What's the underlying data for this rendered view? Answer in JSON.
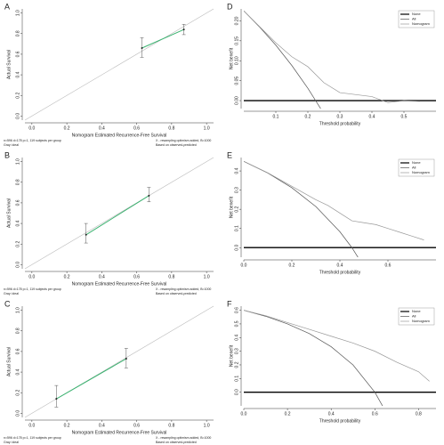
{
  "chart_data": [
    {
      "type": "calibration",
      "panel": "A",
      "xlabel": "Nomogram Estimated Recurrence-Free Survival",
      "ylabel": "Actual Survival",
      "xlim": [
        -0.04,
        1.04
      ],
      "ylim": [
        -0.04,
        1.04
      ],
      "xticks": [
        {
          "value": 0,
          "label": "0.0"
        },
        0.2,
        0.4,
        0.6,
        0.8,
        {
          "value": 1,
          "label": "1.0"
        }
      ],
      "yticks": [
        {
          "value": 0,
          "label": "0.0"
        },
        0.2,
        0.4,
        0.6,
        0.8,
        {
          "value": 1,
          "label": "1.0"
        }
      ],
      "x": [
        0.63,
        0.87
      ],
      "values": [
        0.66,
        0.84
      ],
      "lower": [
        0.57,
        0.79
      ],
      "upper": [
        0.76,
        0.89
      ],
      "color": "#3cb371",
      "notes_left": [
        "n=596 d=178 p=1, 119 subjects per group",
        "Gray: ideal"
      ],
      "notes_right": [
        "X - resampling optimism added, B=1000",
        "Based on observed-predicted"
      ]
    },
    {
      "type": "calibration",
      "panel": "B",
      "xlabel": "Nomogram Estimated Recurrence-Free Survival",
      "ylabel": "Actual Survival",
      "xlim": [
        -0.04,
        1.04
      ],
      "ylim": [
        -0.04,
        1.04
      ],
      "xticks": [
        {
          "value": 0,
          "label": "0.0"
        },
        0.2,
        0.4,
        0.6,
        0.8,
        {
          "value": 1,
          "label": "1.0"
        }
      ],
      "yticks": [
        {
          "value": 0,
          "label": "0.0"
        },
        0.2,
        0.4,
        0.6,
        0.8,
        {
          "value": 1,
          "label": "1.0"
        }
      ],
      "x": [
        0.31,
        0.67
      ],
      "values": [
        0.29,
        0.67
      ],
      "lower": [
        0.21,
        0.61
      ],
      "upper": [
        0.4,
        0.75
      ],
      "color": "#3cb371",
      "notes_left": [
        "n=596 d=178 p=1, 119 subjects per group",
        "Gray: ideal"
      ],
      "notes_right": [
        "X - resampling optimism added, B=1000",
        "Based on observed-predicted"
      ]
    },
    {
      "type": "calibration",
      "panel": "C",
      "xlabel": "Nomogram Estimated Recurrence-Free Survival",
      "ylabel": "Actual Survival",
      "xlim": [
        -0.04,
        1.04
      ],
      "ylim": [
        -0.04,
        1.04
      ],
      "xticks": [
        {
          "value": 0,
          "label": "0.0"
        },
        0.2,
        0.4,
        0.6,
        0.8,
        {
          "value": 1,
          "label": "1.0"
        }
      ],
      "yticks": [
        {
          "value": 0,
          "label": "0.0"
        },
        0.2,
        0.4,
        0.6,
        0.8,
        {
          "value": 1,
          "label": "1.0"
        }
      ],
      "x": [
        0.14,
        0.54
      ],
      "values": [
        0.14,
        0.53
      ],
      "lower": [
        0.06,
        0.44
      ],
      "upper": [
        0.27,
        0.63
      ],
      "color": "#3cb371",
      "notes_left": [
        "n=596 d=178 p=1, 119 subjects per group",
        "Gray: ideal"
      ],
      "notes_right": [
        "X - resampling optimism added, B=1000",
        "Based on observed-predicted"
      ]
    },
    {
      "type": "line",
      "panel": "D",
      "xlabel": "Threshold probability",
      "ylabel": "Net benefit",
      "xlim": [
        0,
        0.6
      ],
      "ylim": [
        -0.02,
        0.23
      ],
      "xticks": [
        0.1,
        0.2,
        0.3,
        0.4,
        0.5
      ],
      "yticks": [
        {
          "value": 0,
          "label": "0.00"
        },
        {
          "value": 0.05,
          "label": "0.05"
        },
        {
          "value": 0.1,
          "label": "0.10"
        },
        {
          "value": 0.15,
          "label": "0.15"
        },
        {
          "value": 0.2,
          "label": "0.20"
        }
      ],
      "series": [
        {
          "name": "None",
          "color": "#000000",
          "x": [
            0,
            0.6
          ],
          "values": [
            0,
            0
          ]
        },
        {
          "name": "All",
          "color": "#555555",
          "x": [
            0,
            0.05,
            0.1,
            0.15,
            0.2,
            0.25
          ],
          "values": [
            0.225,
            0.184,
            0.139,
            0.088,
            0.031,
            -0.033
          ]
        },
        {
          "name": "Nomogram",
          "color": "#999999",
          "x": [
            0,
            0.05,
            0.1,
            0.15,
            0.2,
            0.25,
            0.3,
            0.35,
            0.4,
            0.45,
            0.5,
            0.55
          ],
          "values": [
            0.225,
            0.185,
            0.145,
            0.11,
            0.085,
            0.045,
            0.02,
            0.015,
            0.01,
            -0.005,
            0,
            -0.002
          ]
        }
      ]
    },
    {
      "type": "line",
      "panel": "E",
      "xlabel": "Threshold probability",
      "ylabel": "Net benefit",
      "xlim": [
        0,
        0.8
      ],
      "ylim": [
        -0.05,
        0.47
      ],
      "xticks": [
        {
          "value": 0,
          "label": "0.0"
        },
        0.2,
        0.4,
        0.6
      ],
      "yticks": [
        {
          "value": 0,
          "label": "0.0"
        },
        0.1,
        0.2,
        0.3,
        0.4
      ],
      "series": [
        {
          "name": "None",
          "color": "#000000",
          "x": [
            0,
            0.8
          ],
          "values": [
            0,
            0
          ]
        },
        {
          "name": "All",
          "color": "#555555",
          "x": [
            0,
            0.1,
            0.2,
            0.3,
            0.4,
            0.45,
            0.5
          ],
          "values": [
            0.45,
            0.389,
            0.3125,
            0.214,
            0.083,
            0,
            -0.1
          ]
        },
        {
          "name": "Nomogram",
          "color": "#999999",
          "x": [
            0,
            0.1,
            0.2,
            0.3,
            0.35,
            0.4,
            0.45,
            0.5,
            0.55,
            0.6,
            0.65,
            0.7,
            0.75
          ],
          "values": [
            0.45,
            0.39,
            0.32,
            0.25,
            0.22,
            0.18,
            0.14,
            0.13,
            0.12,
            0.1,
            0.08,
            0.06,
            0.04
          ]
        }
      ]
    },
    {
      "type": "line",
      "panel": "F",
      "xlabel": "Threshold probability",
      "ylabel": "Net benefit",
      "xlim": [
        0,
        0.88
      ],
      "ylim": [
        -0.1,
        0.63
      ],
      "xticks": [
        {
          "value": 0,
          "label": "0.0"
        },
        0.2,
        0.4,
        0.6,
        0.8
      ],
      "yticks": [
        {
          "value": 0,
          "label": "0.0"
        },
        0.1,
        0.2,
        0.3,
        0.4,
        0.5,
        0.6
      ],
      "series": [
        {
          "name": "None",
          "color": "#000000",
          "x": [
            0,
            0.88
          ],
          "values": [
            0,
            0
          ]
        },
        {
          "name": "All",
          "color": "#555555",
          "x": [
            0,
            0.1,
            0.2,
            0.3,
            0.4,
            0.5,
            0.6,
            0.65
          ],
          "values": [
            0.6,
            0.556,
            0.5,
            0.429,
            0.333,
            0.2,
            0,
            -0.143
          ]
        },
        {
          "name": "Nomogram",
          "color": "#999999",
          "x": [
            0,
            0.1,
            0.2,
            0.3,
            0.4,
            0.5,
            0.6,
            0.7,
            0.8,
            0.85
          ],
          "values": [
            0.6,
            0.56,
            0.51,
            0.46,
            0.41,
            0.36,
            0.3,
            0.22,
            0.15,
            0.08
          ]
        }
      ]
    }
  ]
}
